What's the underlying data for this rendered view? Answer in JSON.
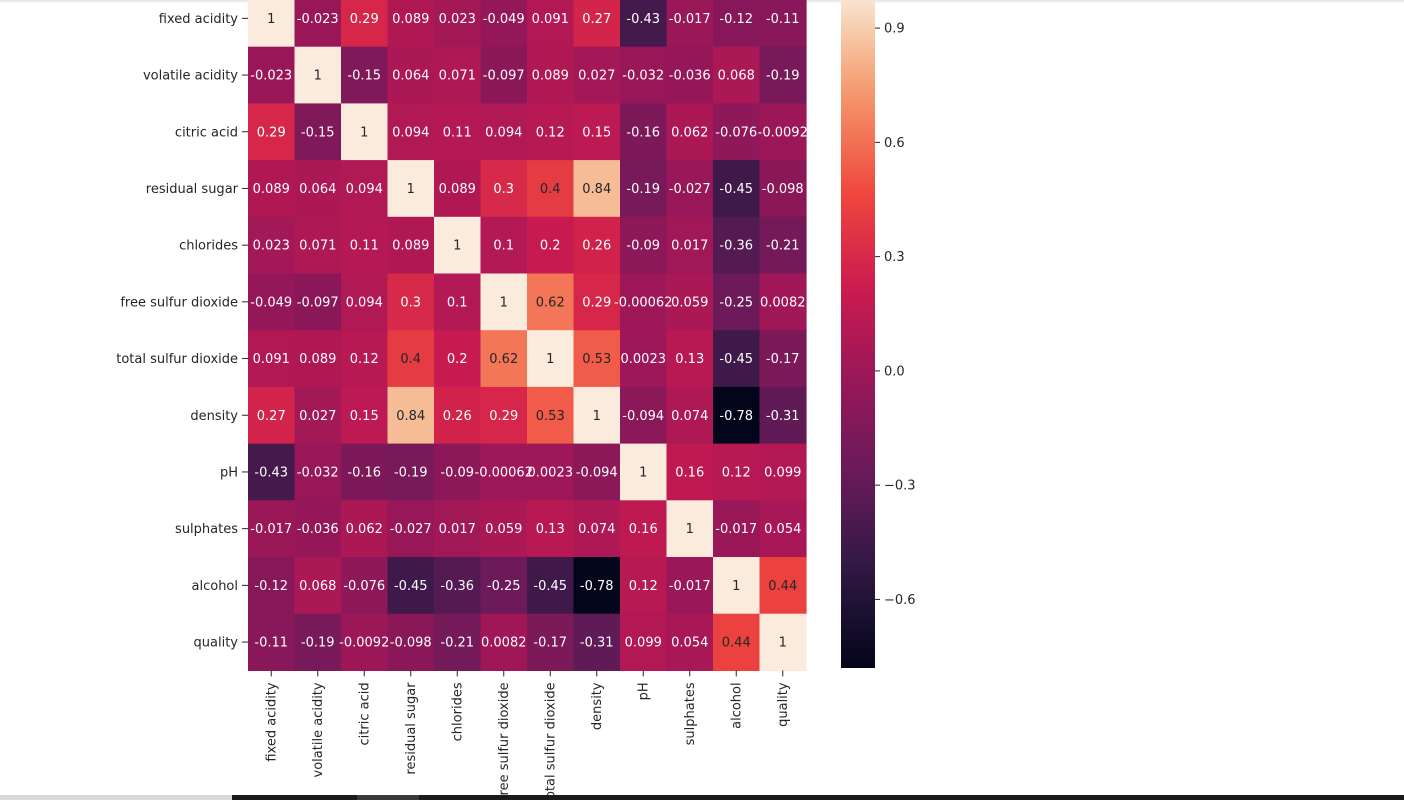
{
  "chart_data": {
    "type": "heatmap",
    "title": "",
    "xlabel": "",
    "ylabel": "",
    "labels": [
      "fixed acidity",
      "volatile acidity",
      "citric acid",
      "residual sugar",
      "chlorides",
      "free sulfur dioxide",
      "total sulfur dioxide",
      "density",
      "pH",
      "sulphates",
      "alcohol",
      "quality"
    ],
    "cell_labels": [
      [
        "1",
        "-0.023",
        "0.29",
        "0.089",
        "0.023",
        "-0.049",
        "0.091",
        "0.27",
        "-0.43",
        "-0.017",
        "-0.12",
        "-0.11"
      ],
      [
        "-0.023",
        "1",
        "-0.15",
        "0.064",
        "0.071",
        "-0.097",
        "0.089",
        "0.027",
        "-0.032",
        "-0.036",
        "0.068",
        "-0.19"
      ],
      [
        "0.29",
        "-0.15",
        "1",
        "0.094",
        "0.11",
        "0.094",
        "0.12",
        "0.15",
        "-0.16",
        "0.062",
        "-0.076",
        "-0.0092"
      ],
      [
        "0.089",
        "0.064",
        "0.094",
        "1",
        "0.089",
        "0.3",
        "0.4",
        "0.84",
        "-0.19",
        "-0.027",
        "-0.45",
        "-0.098"
      ],
      [
        "0.023",
        "0.071",
        "0.11",
        "0.089",
        "1",
        "0.1",
        "0.2",
        "0.26",
        "-0.09",
        "0.017",
        "-0.36",
        "-0.21"
      ],
      [
        "-0.049",
        "-0.097",
        "0.094",
        "0.3",
        "0.1",
        "1",
        "0.62",
        "0.29",
        "-0.00062",
        "0.059",
        "-0.25",
        "0.0082"
      ],
      [
        "0.091",
        "0.089",
        "0.12",
        "0.4",
        "0.2",
        "0.62",
        "1",
        "0.53",
        "0.0023",
        "0.13",
        "-0.45",
        "-0.17"
      ],
      [
        "0.27",
        "0.027",
        "0.15",
        "0.84",
        "0.26",
        "0.29",
        "0.53",
        "1",
        "-0.094",
        "0.074",
        "-0.78",
        "-0.31"
      ],
      [
        "-0.43",
        "-0.032",
        "-0.16",
        "-0.19",
        "-0.09",
        "-0.00062",
        "0.0023",
        "-0.094",
        "1",
        "0.16",
        "0.12",
        "0.099"
      ],
      [
        "-0.017",
        "-0.036",
        "0.062",
        "-0.027",
        "0.017",
        "0.059",
        "0.13",
        "0.074",
        "0.16",
        "1",
        "-0.017",
        "0.054"
      ],
      [
        "-0.12",
        "0.068",
        "-0.076",
        "-0.45",
        "-0.36",
        "-0.25",
        "-0.45",
        "-0.78",
        "0.12",
        "-0.017",
        "1",
        "0.44"
      ],
      [
        "-0.11",
        "-0.19",
        "-0.0092",
        "-0.098",
        "-0.21",
        "0.0082",
        "-0.17",
        "-0.31",
        "0.099",
        "0.054",
        "0.44",
        "1"
      ]
    ],
    "vmin": -0.78,
    "vmax": 1.0,
    "colorbar_ticks": [
      {
        "value": 0.9,
        "label": "0.9"
      },
      {
        "value": 0.6,
        "label": "0.6"
      },
      {
        "value": 0.3,
        "label": "0.3"
      },
      {
        "value": 0.0,
        "label": "0.0"
      },
      {
        "value": -0.3,
        "label": "−0.3"
      },
      {
        "value": -0.6,
        "label": "−0.6"
      }
    ],
    "colormap": "rocket",
    "grid": false,
    "legend": "colorbar-right"
  }
}
